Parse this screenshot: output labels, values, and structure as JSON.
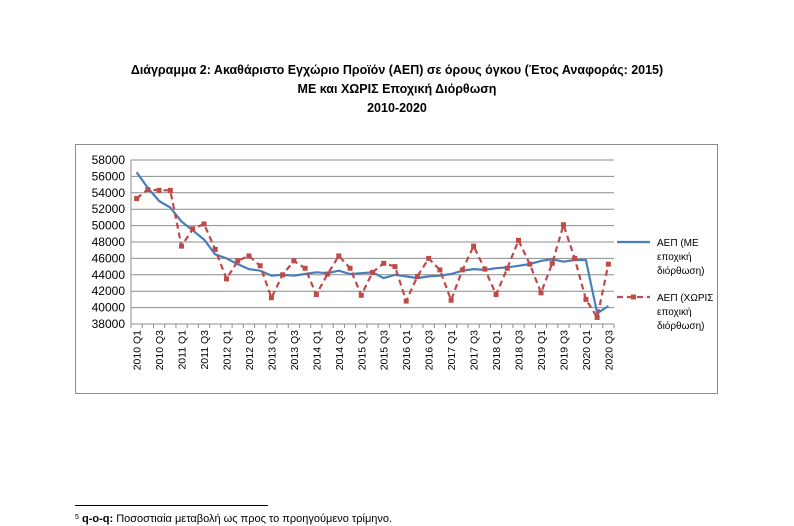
{
  "title": {
    "line1": "Διάγραμμα 2: Ακαθάριστο Εγχώριο Προϊόν (ΑΕΠ) σε όρους όγκου (Έτος Αναφοράς: 2015)",
    "line2": "ΜΕ και ΧΩΡΙΣ Εποχική Διόρθωση",
    "line3": "2010-2020"
  },
  "footnote": {
    "marker": "5",
    "term": "q-o-q:",
    "text": "Ποσοστιαία μεταβολή ως προς το προηγούμενο τρίμηνο."
  },
  "chart_data": {
    "type": "line",
    "ylim": [
      38000,
      58000
    ],
    "yticks": [
      "58000",
      "56000",
      "54000",
      "52000",
      "50000",
      "48000",
      "46000",
      "44000",
      "42000",
      "40000",
      "38000"
    ],
    "ytick_values": [
      58000,
      56000,
      54000,
      52000,
      50000,
      48000,
      46000,
      44000,
      42000,
      40000,
      38000
    ],
    "grid": true,
    "legend_position": "right",
    "x": [
      "2010 Q1",
      "2010 Q2",
      "2010 Q3",
      "2010 Q4",
      "2011 Q1",
      "2011 Q2",
      "2011 Q3",
      "2011 Q4",
      "2012 Q1",
      "2012 Q2",
      "2012 Q3",
      "2012 Q4",
      "2013 Q1",
      "2013 Q2",
      "2013 Q3",
      "2013 Q4",
      "2014 Q1",
      "2014 Q2",
      "2014 Q3",
      "2014 Q4",
      "2015 Q1",
      "2015 Q2",
      "2015 Q3",
      "2015 Q4",
      "2016 Q1",
      "2016 Q2",
      "2016 Q3",
      "2016 Q4",
      "2017 Q1",
      "2017 Q2",
      "2017 Q3",
      "2017 Q4",
      "2018 Q1",
      "2018 Q2",
      "2018 Q3",
      "2018 Q4",
      "2019 Q1",
      "2019 Q2",
      "2019 Q3",
      "2019 Q4",
      "2020 Q1",
      "2020 Q2",
      "2020 Q3"
    ],
    "x_tick_labels": [
      "2010 Q1",
      "2010 Q3",
      "2011 Q1",
      "2011 Q3",
      "2012 Q1",
      "2012 Q3",
      "2013 Q1",
      "2013 Q3",
      "2014 Q1",
      "2014 Q3",
      "2015 Q1",
      "2015 Q3",
      "2016 Q1",
      "2016 Q3",
      "2017 Q1",
      "2017 Q3",
      "2018 Q1",
      "2018 Q3",
      "2019 Q1",
      "2019 Q3",
      "2020 Q1",
      "2020 Q3"
    ],
    "series": [
      {
        "name": "ΑΕΠ (ΜΕ εποχική διόρθωση)",
        "color": "#4a7ebb",
        "style": "solid",
        "values": [
          56500,
          54600,
          53000,
          52200,
          50500,
          49400,
          48300,
          46500,
          46000,
          45300,
          44700,
          44500,
          43900,
          44000,
          43900,
          44100,
          44300,
          44200,
          44500,
          44100,
          44200,
          44300,
          43600,
          44000,
          43800,
          43600,
          43800,
          43900,
          44100,
          44500,
          44700,
          44600,
          44800,
          44900,
          45100,
          45300,
          45700,
          45900,
          45600,
          45800,
          45800,
          39300,
          40200
        ]
      },
      {
        "name": "ΑΕΠ (ΧΩΡΙΣ εποχική διόρθωση)",
        "color": "#be4b48",
        "style": "dashed",
        "values": [
          53300,
          54400,
          54300,
          54300,
          47500,
          49600,
          50200,
          47100,
          43500,
          45700,
          46300,
          45100,
          41200,
          44000,
          45700,
          44800,
          41600,
          44100,
          46300,
          44800,
          41500,
          44300,
          45400,
          45000,
          40800,
          43800,
          46000,
          44600,
          40900,
          44600,
          47500,
          44700,
          41600,
          44800,
          48200,
          45300,
          41800,
          45400,
          50100,
          46000,
          41000,
          38800,
          45300
        ]
      }
    ]
  }
}
